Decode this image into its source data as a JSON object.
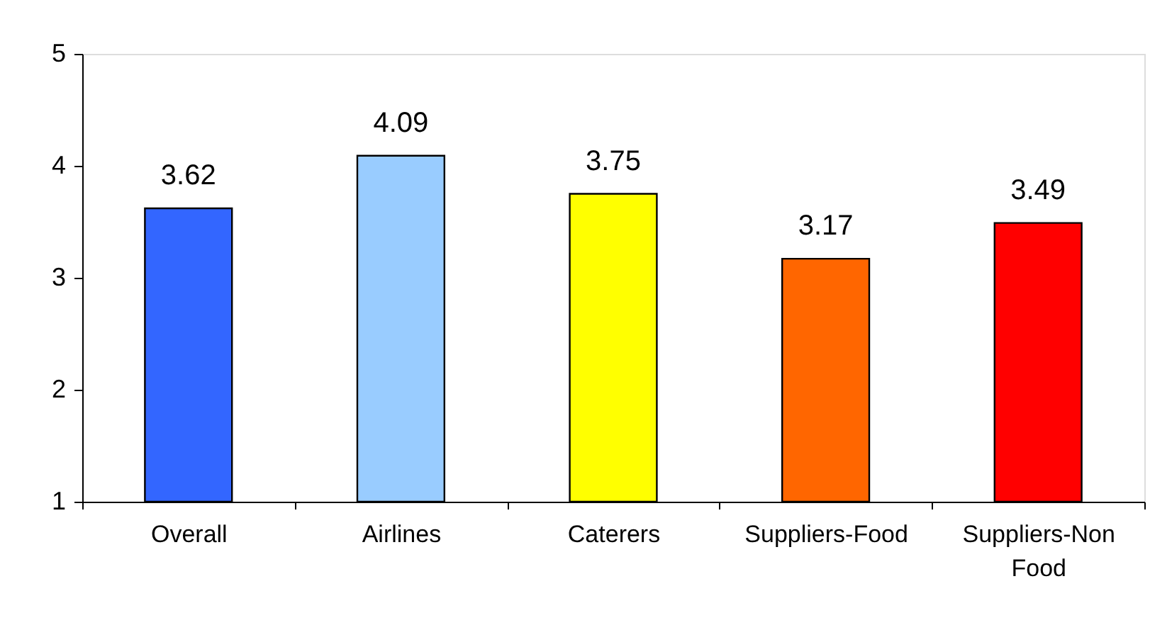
{
  "chart_data": {
    "type": "bar",
    "categories": [
      "Overall",
      "Airlines",
      "Caterers",
      "Suppliers-Food",
      "Suppliers-Non Food"
    ],
    "values": [
      3.62,
      4.09,
      3.75,
      3.17,
      3.49
    ],
    "colors": [
      "#3366ff",
      "#99ccff",
      "#ffff00",
      "#ff6600",
      "#ff0000"
    ],
    "ylim": [
      1,
      5
    ],
    "yticks": [
      1,
      2,
      3,
      4,
      5
    ],
    "data_labels": true,
    "grid": false
  }
}
